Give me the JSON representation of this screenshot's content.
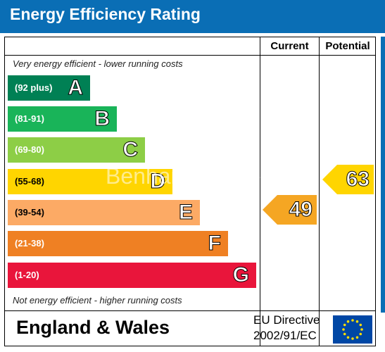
{
  "title": "Energy Efficiency Rating",
  "columns": {
    "current": "Current",
    "potential": "Potential"
  },
  "notes": {
    "top": "Very energy efficient - lower running costs",
    "bottom": "Not energy efficient - higher running costs"
  },
  "bands": [
    {
      "range": "(92 plus)",
      "letter": "A",
      "color": "#008054"
    },
    {
      "range": "(81-91)",
      "letter": "B",
      "color": "#19b459"
    },
    {
      "range": "(69-80)",
      "letter": "C",
      "color": "#8dce46"
    },
    {
      "range": "(55-68)",
      "letter": "D",
      "color": "#ffd500"
    },
    {
      "range": "(39-54)",
      "letter": "E",
      "color": "#fcaa65"
    },
    {
      "range": "(21-38)",
      "letter": "F",
      "color": "#ef8023"
    },
    {
      "range": "(1-20)",
      "letter": "G",
      "color": "#e9153b"
    }
  ],
  "current": {
    "value": "49",
    "band": "E",
    "color": "#f5a623"
  },
  "potential": {
    "value": "63",
    "band": "D",
    "color": "#ffd500"
  },
  "footer": {
    "region": "England & Wales",
    "directive_line1": "EU Directive",
    "directive_line2": "2002/91/EC"
  },
  "watermark": "Benham Reeves",
  "colors": {
    "header": "#0a6eb5",
    "eu_flag": "#0047a5",
    "eu_stars": "#ffdd00"
  }
}
